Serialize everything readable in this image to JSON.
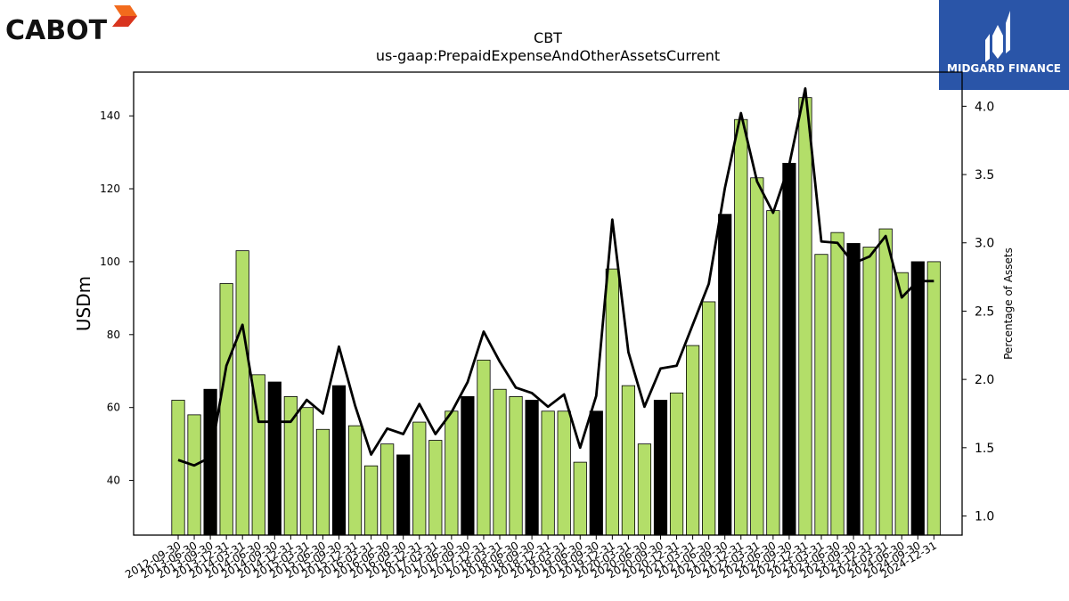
{
  "branding": {
    "left_logo_text": "CABOT",
    "right_logo_text": "MIDGARD FINANCE",
    "right_logo_bg": "#2a55a8"
  },
  "chart_data": {
    "type": "bar",
    "title": "CBT",
    "subtitle": "us-gaap:PrepaidExpenseAndOtherAssetsCurrent",
    "ylabel": "USDm",
    "y2label": "Percentage of Assets",
    "ylim": [
      25,
      152
    ],
    "y2lim": [
      0.86,
      4.25
    ],
    "yticks": [
      40,
      60,
      80,
      100,
      120,
      140
    ],
    "y2ticks": [
      "1.0",
      "1.5",
      "2.0",
      "2.5",
      "3.0",
      "3.5",
      "4.0"
    ],
    "colors": {
      "quarter_bar": "#b3de69",
      "fiscal_year_end_bar": "#000000",
      "line": "#000000"
    },
    "categories": [
      "2012-09-30",
      "2013-06-30",
      "2013-09-30",
      "2013-12-31",
      "2014-03-31",
      "2014-06-30",
      "2014-09-30",
      "2014-12-31",
      "2015-03-31",
      "2015-06-30",
      "2015-09-30",
      "2015-12-31",
      "2016-03-31",
      "2016-06-30",
      "2016-09-30",
      "2016-12-31",
      "2017-03-31",
      "2017-06-30",
      "2017-09-30",
      "2017-12-31",
      "2018-03-31",
      "2018-06-30",
      "2018-09-30",
      "2018-12-31",
      "2019-03-31",
      "2019-06-30",
      "2019-09-30",
      "2019-12-31",
      "2020-03-31",
      "2020-06-30",
      "2020-09-30",
      "2020-12-31",
      "2021-03-31",
      "2021-06-30",
      "2021-09-30",
      "2021-12-31",
      "2022-03-31",
      "2022-06-30",
      "2022-09-30",
      "2022-12-31",
      "2023-03-31",
      "2023-06-30",
      "2023-09-30",
      "2023-12-31",
      "2024-03-31",
      "2024-06-30",
      "2024-09-30",
      "2024-12-31"
    ],
    "series": [
      {
        "kind": "bar",
        "axis": "left",
        "values": [
          62,
          58,
          65,
          94,
          103,
          69,
          67,
          63,
          60,
          54,
          66,
          55,
          44,
          50,
          47,
          56,
          51,
          59,
          63,
          73,
          65,
          63,
          62,
          59,
          59,
          45,
          59,
          98,
          66,
          50,
          62,
          64,
          77,
          89,
          113,
          139,
          123,
          114,
          127,
          145,
          102,
          108,
          105,
          104,
          109,
          97,
          100,
          100
        ],
        "fiscal_year_end": [
          false,
          false,
          true,
          false,
          false,
          false,
          true,
          false,
          false,
          false,
          true,
          false,
          false,
          false,
          true,
          false,
          false,
          false,
          true,
          false,
          false,
          false,
          true,
          false,
          false,
          false,
          true,
          false,
          false,
          false,
          true,
          false,
          false,
          false,
          true,
          false,
          false,
          false,
          true,
          false,
          false,
          false,
          true,
          false,
          false,
          false,
          true,
          false
        ]
      },
      {
        "kind": "line",
        "axis": "right",
        "values": [
          1.41,
          1.37,
          1.43,
          2.1,
          2.4,
          1.69,
          1.69,
          1.69,
          1.85,
          1.75,
          2.24,
          1.81,
          1.45,
          1.64,
          1.6,
          1.82,
          1.6,
          1.76,
          1.98,
          2.35,
          2.13,
          1.94,
          1.9,
          1.8,
          1.89,
          1.5,
          1.88,
          3.17,
          2.2,
          1.8,
          2.08,
          2.1,
          2.4,
          2.7,
          3.4,
          3.95,
          3.45,
          3.22,
          3.57,
          4.13,
          3.01,
          3.0,
          2.85,
          2.9,
          3.05,
          2.6,
          2.72,
          2.72
        ]
      }
    ]
  }
}
